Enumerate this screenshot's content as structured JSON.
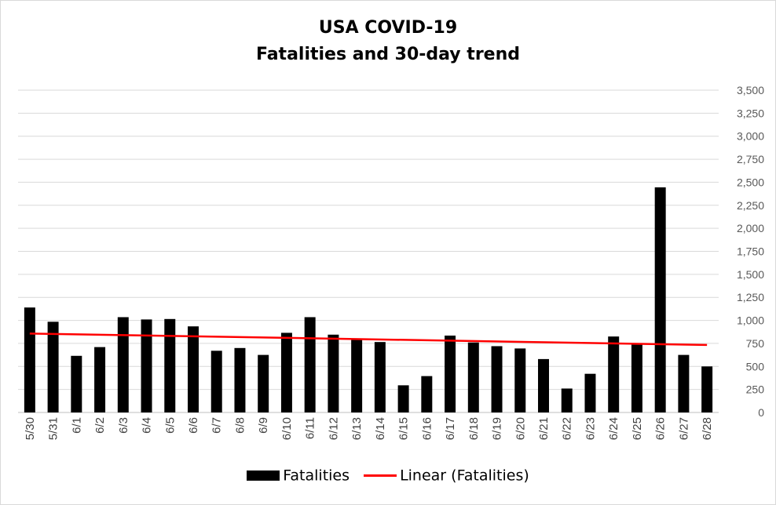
{
  "chart_data": {
    "type": "bar",
    "title": [
      "USA COVID-19",
      "Fatalities and 30-day trend"
    ],
    "categories": [
      "5/30",
      "5/31",
      "6/1",
      "6/2",
      "6/3",
      "6/4",
      "6/5",
      "6/6",
      "6/7",
      "6/8",
      "6/9",
      "6/10",
      "6/11",
      "6/12",
      "6/13",
      "6/14",
      "6/15",
      "6/16",
      "6/17",
      "6/18",
      "6/19",
      "6/20",
      "6/21",
      "6/22",
      "6/23",
      "6/24",
      "6/25",
      "6/26",
      "6/27",
      "6/28"
    ],
    "series": [
      {
        "name": "Fatalities",
        "type": "bar",
        "color": "#000000",
        "values": [
          1140,
          985,
          615,
          710,
          1035,
          1010,
          1015,
          935,
          670,
          700,
          625,
          865,
          1035,
          845,
          790,
          765,
          295,
          395,
          835,
          760,
          720,
          695,
          580,
          260,
          420,
          825,
          750,
          2445,
          625,
          500
        ]
      },
      {
        "name": "Linear (Fatalities)",
        "type": "line",
        "color": "#ff0000",
        "start": 857,
        "end": 733
      }
    ],
    "ylim": [
      0,
      3500
    ],
    "yticks": [
      0,
      250,
      500,
      750,
      1000,
      1250,
      1500,
      1750,
      2000,
      2250,
      2500,
      2750,
      3000,
      3250,
      3500
    ],
    "ytick_labels": [
      "0",
      "250",
      "500",
      "750",
      "1,000",
      "1,250",
      "1,500",
      "1,750",
      "2,000",
      "2,250",
      "2,500",
      "2,750",
      "3,000",
      "3,250",
      "3,500"
    ],
    "yaxis_side": "right",
    "grid": true,
    "legend": "bottom",
    "xlabel": "",
    "ylabel": ""
  }
}
